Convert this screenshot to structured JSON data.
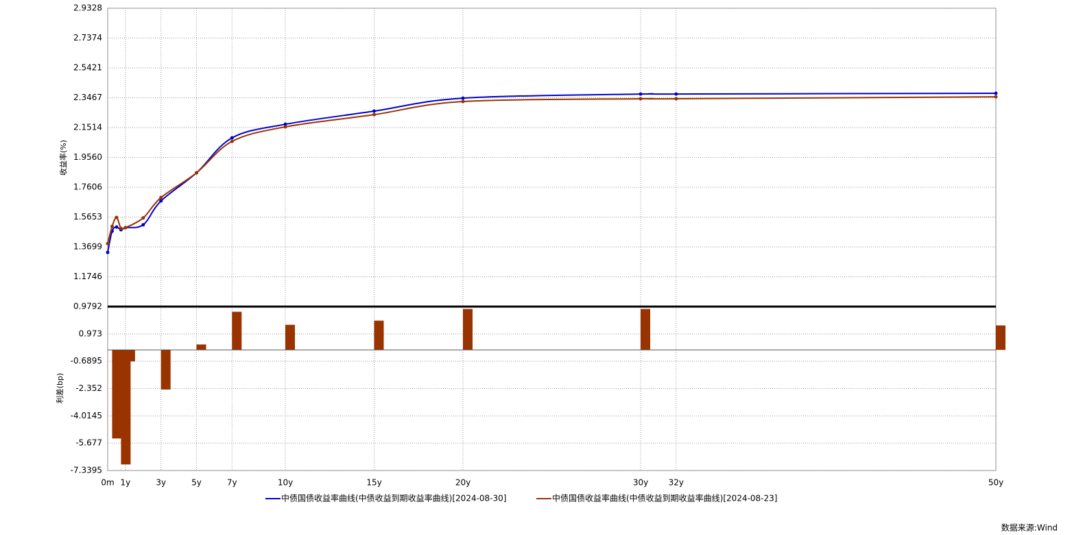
{
  "chart_data": [
    {
      "type": "line",
      "y_label": "收益率(%)",
      "x": [
        0,
        0.25,
        0.5,
        0.75,
        1,
        2,
        3,
        5,
        7,
        10,
        15,
        20,
        30,
        32,
        50
      ],
      "series": [
        {
          "name": "中债国债收益率曲线(中债收益到期收益率曲线)[2024-08-30]",
          "color": "#0000cc",
          "values": [
            1.334,
            1.473,
            1.5,
            1.482,
            1.496,
            1.515,
            1.671,
            1.855,
            2.084,
            2.173,
            2.259,
            2.344,
            2.371,
            2.371,
            2.376
          ]
        },
        {
          "name": "中债国债收益率曲线(中债收益到期收益率曲线)[2024-08-23]",
          "color": "#993300",
          "values": [
            1.392,
            1.504,
            1.563,
            1.491,
            1.496,
            1.56,
            1.693,
            1.855,
            2.061,
            2.156,
            2.236,
            2.322,
            2.34,
            2.34,
            2.353
          ]
        }
      ],
      "xlim": [
        0,
        50
      ],
      "xticks": [
        {
          "value": 0,
          "label": "0m"
        },
        {
          "value": 1,
          "label": "1y"
        },
        {
          "value": 3,
          "label": "3y"
        },
        {
          "value": 5,
          "label": "5y"
        },
        {
          "value": 7,
          "label": "7y"
        },
        {
          "value": 10,
          "label": "10y"
        },
        {
          "value": 15,
          "label": "15y"
        },
        {
          "value": 20,
          "label": "20y"
        },
        {
          "value": 30,
          "label": "30y"
        },
        {
          "value": 32,
          "label": "32y"
        },
        {
          "value": 50,
          "label": "50y"
        }
      ],
      "ylim": [
        0.9792,
        2.9328
      ],
      "yticks": [
        0.9792,
        1.1746,
        1.3699,
        1.5653,
        1.7606,
        {
          "value": 1.956,
          "label": "1.9560"
        },
        2.1514,
        2.3467,
        2.5421,
        2.7374,
        2.9328
      ],
      "grid": true
    },
    {
      "type": "bar",
      "y_label": "利差(bp)",
      "color": "#993300",
      "x": [
        0.25,
        0.75,
        1,
        3,
        5,
        7,
        10,
        15,
        20,
        30,
        50
      ],
      "values": [
        -5.39,
        -6.97,
        -0.7,
        -2.41,
        0.33,
        2.32,
        1.53,
        1.78,
        2.49,
        2.49,
        1.49
      ],
      "xlim": [
        0,
        50
      ],
      "ylim": [
        -7.3395,
        2.6355
      ],
      "yticks": [
        -7.3395,
        -5.677,
        -4.0145,
        -2.352,
        -0.6895,
        0.973
      ],
      "grid": true
    }
  ],
  "source": "数据来源:Wind"
}
